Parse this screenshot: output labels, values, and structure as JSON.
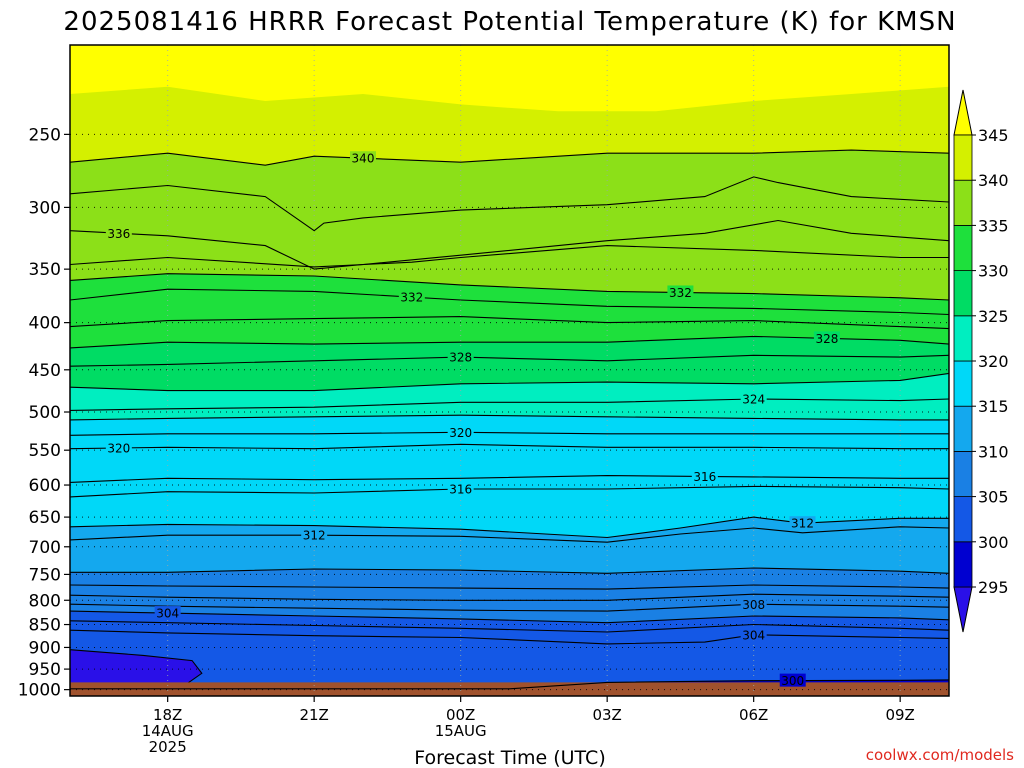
{
  "chart_data": {
    "type": "contour",
    "title": "2025081416 HRRR Forecast Potential Temperature (K) for KMSN",
    "xlabel": "Forecast Time (UTC)",
    "ylabel": "",
    "y_scale": "log",
    "y_inverted": true,
    "ylim": [
      1016,
      200
    ],
    "y_ticks": [
      250,
      300,
      350,
      400,
      450,
      500,
      550,
      600,
      650,
      700,
      750,
      800,
      850,
      900,
      950,
      1000
    ],
    "xlim": [
      16,
      34
    ],
    "x_ticks": [
      {
        "value": 18,
        "lines": [
          "18Z",
          "14AUG",
          "2025"
        ]
      },
      {
        "value": 21,
        "lines": [
          "21Z"
        ]
      },
      {
        "value": 24,
        "lines": [
          "00Z",
          "15AUG"
        ]
      },
      {
        "value": 27,
        "lines": [
          "03Z"
        ]
      },
      {
        "value": 30,
        "lines": [
          "06Z"
        ]
      },
      {
        "value": 33,
        "lines": [
          "09Z"
        ]
      }
    ],
    "grid": true,
    "surface_pressure": 982,
    "colorbar": {
      "ticks": [
        295,
        300,
        305,
        310,
        315,
        320,
        325,
        330,
        335,
        340,
        345
      ],
      "colors": [
        "#2a10e8",
        "#0000d0",
        "#1458e6",
        "#1a80e4",
        "#14a8ee",
        "#00d8f8",
        "#00eec0",
        "#00dc64",
        "#1ee03c",
        "#8ce018",
        "#d4f000",
        "#ffff00"
      ]
    },
    "contours": [
      {
        "level": 300,
        "points": [
          [
            16,
            998
          ],
          [
            19.5,
            998
          ],
          [
            25,
            998
          ],
          [
            27,
            982
          ],
          [
            30,
            978
          ],
          [
            33,
            977
          ],
          [
            34,
            976
          ]
        ],
        "label_at": 30.8
      },
      {
        "level": 304,
        "points": [
          [
            16,
            862
          ],
          [
            18,
            868
          ],
          [
            21,
            874
          ],
          [
            24,
            878
          ],
          [
            27,
            892
          ],
          [
            29,
            888
          ],
          [
            30,
            872
          ],
          [
            33,
            878
          ],
          [
            34,
            880
          ]
        ],
        "label_at": 30
      },
      {
        "level": 304,
        "points": [
          [
            16,
            842
          ],
          [
            18,
            846
          ],
          [
            21,
            852
          ],
          [
            24,
            858
          ],
          [
            27,
            866
          ],
          [
            30,
            850
          ],
          [
            33,
            858
          ],
          [
            34,
            862
          ]
        ]
      },
      {
        "level": 304,
        "points": [
          [
            16,
            822
          ],
          [
            18,
            826
          ],
          [
            21,
            832
          ],
          [
            24,
            838
          ],
          [
            27,
            846
          ],
          [
            30,
            832
          ],
          [
            33,
            836
          ],
          [
            34,
            840
          ]
        ],
        "label_at": 18
      },
      {
        "level": 308,
        "points": [
          [
            16,
            808
          ],
          [
            18,
            812
          ],
          [
            21,
            816
          ],
          [
            24,
            820
          ],
          [
            27,
            822
          ],
          [
            30,
            808
          ],
          [
            33,
            812
          ],
          [
            34,
            814
          ]
        ],
        "label_at": 30
      },
      {
        "level": 308,
        "points": [
          [
            16,
            790
          ],
          [
            18,
            794
          ],
          [
            21,
            798
          ],
          [
            24,
            800
          ],
          [
            27,
            800
          ],
          [
            30,
            788
          ],
          [
            33,
            792
          ],
          [
            34,
            794
          ]
        ]
      },
      {
        "level": 308,
        "points": [
          [
            16,
            770
          ],
          [
            18,
            772
          ],
          [
            21,
            774
          ],
          [
            24,
            776
          ],
          [
            27,
            778
          ],
          [
            30,
            770
          ],
          [
            33,
            774
          ],
          [
            34,
            776
          ]
        ]
      },
      {
        "level": 308,
        "points": [
          [
            16,
            746
          ],
          [
            18,
            746
          ],
          [
            21,
            740
          ],
          [
            24,
            742
          ],
          [
            27,
            748
          ],
          [
            30,
            738
          ],
          [
            33,
            744
          ],
          [
            34,
            748
          ]
        ]
      },
      {
        "level": 312,
        "points": [
          [
            16,
            688
          ],
          [
            18,
            680
          ],
          [
            21,
            680
          ],
          [
            24,
            682
          ],
          [
            27,
            692
          ],
          [
            28.5,
            678
          ],
          [
            30,
            668
          ],
          [
            31,
            676
          ],
          [
            33,
            666
          ],
          [
            34,
            668
          ]
        ],
        "label_at": 21
      },
      {
        "level": 312,
        "points": [
          [
            16,
            666
          ],
          [
            18,
            662
          ],
          [
            21,
            664
          ],
          [
            24,
            670
          ],
          [
            27,
            684
          ],
          [
            28.5,
            668
          ],
          [
            30,
            650
          ],
          [
            31,
            660
          ],
          [
            33,
            652
          ],
          [
            34,
            652
          ]
        ],
        "label_at": 31
      },
      {
        "level": 316,
        "points": [
          [
            16,
            618
          ],
          [
            18,
            610
          ],
          [
            21,
            612
          ],
          [
            24,
            606
          ],
          [
            27,
            606
          ],
          [
            30,
            602
          ],
          [
            33,
            604
          ],
          [
            34,
            606
          ]
        ],
        "label_at": 24
      },
      {
        "level": 316,
        "points": [
          [
            16,
            596
          ],
          [
            18,
            590
          ],
          [
            21,
            592
          ],
          [
            24,
            590
          ],
          [
            27,
            586
          ],
          [
            30,
            588
          ],
          [
            33,
            590
          ],
          [
            34,
            590
          ]
        ],
        "label_at": 29
      },
      {
        "level": 320,
        "points": [
          [
            16,
            548
          ],
          [
            18,
            546
          ],
          [
            21,
            548
          ],
          [
            24,
            542
          ],
          [
            27,
            546
          ],
          [
            30,
            546
          ],
          [
            33,
            548
          ],
          [
            34,
            548
          ]
        ],
        "label_at": 17
      },
      {
        "level": 320,
        "points": [
          [
            16,
            530
          ],
          [
            18,
            528
          ],
          [
            21,
            528
          ],
          [
            24,
            526
          ],
          [
            27,
            528
          ],
          [
            30,
            528
          ],
          [
            33,
            528
          ],
          [
            34,
            528
          ]
        ],
        "label_at": 24
      },
      {
        "level": 320,
        "points": [
          [
            16,
            510
          ],
          [
            18,
            508
          ],
          [
            21,
            506
          ],
          [
            24,
            504
          ],
          [
            27,
            506
          ],
          [
            30,
            508
          ],
          [
            33,
            510
          ],
          [
            34,
            510
          ]
        ]
      },
      {
        "level": 324,
        "points": [
          [
            16,
            498
          ],
          [
            18,
            496
          ],
          [
            21,
            494
          ],
          [
            24,
            488
          ],
          [
            27,
            488
          ],
          [
            30,
            484
          ],
          [
            33,
            486
          ],
          [
            34,
            484
          ]
        ],
        "label_at": 30
      },
      {
        "level": 324,
        "points": [
          [
            16,
            470
          ],
          [
            18,
            474
          ],
          [
            21,
            474
          ],
          [
            24,
            466
          ],
          [
            27,
            464
          ],
          [
            30,
            466
          ],
          [
            33,
            462
          ],
          [
            34,
            454
          ]
        ]
      },
      {
        "level": 328,
        "points": [
          [
            16,
            446
          ],
          [
            18,
            444
          ],
          [
            21,
            440
          ],
          [
            24,
            436
          ],
          [
            27,
            440
          ],
          [
            30,
            434
          ],
          [
            33,
            436
          ],
          [
            34,
            434
          ]
        ],
        "label_at": 24
      },
      {
        "level": 328,
        "points": [
          [
            16,
            426
          ],
          [
            18,
            420
          ],
          [
            21,
            422
          ],
          [
            24,
            420
          ],
          [
            27,
            420
          ],
          [
            30,
            414
          ],
          [
            33,
            418
          ],
          [
            34,
            422
          ]
        ],
        "label_at": 31.5
      },
      {
        "level": 332,
        "points": [
          [
            16,
            404
          ],
          [
            18,
            398
          ],
          [
            21,
            396
          ],
          [
            24,
            394
          ],
          [
            27,
            400
          ],
          [
            30,
            398
          ],
          [
            33,
            404
          ],
          [
            34,
            406
          ]
        ]
      },
      {
        "level": 332,
        "points": [
          [
            16,
            378
          ],
          [
            18,
            368
          ],
          [
            21,
            370
          ],
          [
            24,
            378
          ],
          [
            27,
            384
          ],
          [
            30,
            386
          ],
          [
            33,
            390
          ],
          [
            34,
            392
          ]
        ],
        "label_at": 23
      },
      {
        "level": 332,
        "points": [
          [
            16,
            360
          ],
          [
            18,
            354
          ],
          [
            21,
            356
          ],
          [
            24,
            364
          ],
          [
            27,
            370
          ],
          [
            30,
            372
          ],
          [
            33,
            376
          ],
          [
            34,
            378
          ]
        ],
        "label_at": 28.5
      },
      {
        "level": 336,
        "points": [
          [
            16,
            346
          ],
          [
            18,
            340
          ],
          [
            21,
            348
          ],
          [
            23,
            344
          ],
          [
            24,
            340
          ],
          [
            27,
            330
          ],
          [
            30,
            334
          ],
          [
            33,
            340
          ],
          [
            34,
            340
          ]
        ]
      },
      {
        "level": 336,
        "points": [
          [
            16,
            318
          ],
          [
            18,
            322
          ],
          [
            20,
            330
          ],
          [
            21,
            350
          ],
          [
            22,
            346
          ],
          [
            24,
            338
          ],
          [
            27,
            326
          ],
          [
            29,
            320
          ],
          [
            30.5,
            310
          ],
          [
            32,
            320
          ],
          [
            34,
            326
          ]
        ],
        "label_at": 17
      },
      {
        "level": 340,
        "points": [
          [
            16,
            290
          ],
          [
            18,
            284
          ],
          [
            20,
            292
          ],
          [
            21,
            318
          ],
          [
            21.2,
            312
          ],
          [
            22,
            308
          ],
          [
            24,
            302
          ],
          [
            27,
            298
          ],
          [
            29,
            292
          ],
          [
            30,
            278
          ],
          [
            30.5,
            282
          ],
          [
            32,
            292
          ],
          [
            34,
            296
          ]
        ]
      },
      {
        "level": 340,
        "points": [
          [
            16,
            268
          ],
          [
            18,
            262
          ],
          [
            20,
            270
          ],
          [
            21,
            264
          ],
          [
            24,
            268
          ],
          [
            27,
            262
          ],
          [
            30,
            262
          ],
          [
            32,
            260
          ],
          [
            34,
            262
          ]
        ],
        "label_at": 22
      }
    ]
  },
  "credit": "coolwx.com/models"
}
